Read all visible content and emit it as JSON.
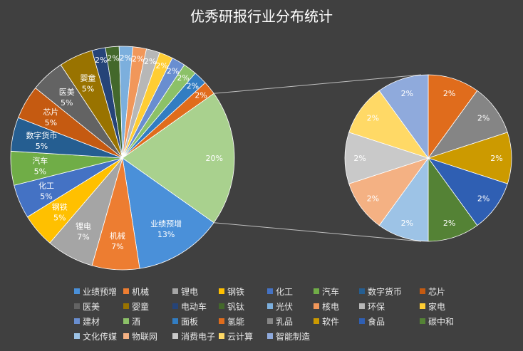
{
  "chart_data": {
    "type": "pie",
    "subtype": "pie-of-pie",
    "title": "优秀研报行业分布统计",
    "legend_position": "bottom",
    "slices": [
      {
        "name": "业绩预增",
        "value": 13,
        "label": "13%",
        "color": "#4a90d9"
      },
      {
        "name": "机械",
        "value": 7,
        "label": "7%",
        "color": "#ed7d31"
      },
      {
        "name": "锂电",
        "value": 7,
        "label": "7%",
        "color": "#a5a5a5"
      },
      {
        "name": "钢铁",
        "value": 5,
        "label": "5%",
        "color": "#ffc000"
      },
      {
        "name": "化工",
        "value": 5,
        "label": "5%",
        "color": "#4472c4"
      },
      {
        "name": "汽车",
        "value": 5,
        "label": "5%",
        "color": "#70ad47"
      },
      {
        "name": "数字货币",
        "value": 5,
        "label": "5%",
        "color": "#255e91"
      },
      {
        "name": "芯片",
        "value": 5,
        "label": "5%",
        "color": "#c55a11"
      },
      {
        "name": "医美",
        "value": 5,
        "label": "5%",
        "color": "#636363"
      },
      {
        "name": "婴童",
        "value": 5,
        "label": "5%",
        "color": "#997300"
      },
      {
        "name": "电动车",
        "value": 2,
        "label": "2%",
        "color": "#264478"
      },
      {
        "name": "钒钛",
        "value": 2,
        "label": "2%",
        "color": "#43682b"
      },
      {
        "name": "光伏",
        "value": 2,
        "label": "2%",
        "color": "#7cafdd"
      },
      {
        "name": "核电",
        "value": 2,
        "label": "2%",
        "color": "#f1975a"
      },
      {
        "name": "环保",
        "value": 2,
        "label": "2%",
        "color": "#b7b7b7"
      },
      {
        "name": "家电",
        "value": 2,
        "label": "2%",
        "color": "#ffcd33"
      },
      {
        "name": "建材",
        "value": 2,
        "label": "2%",
        "color": "#698ed0"
      },
      {
        "name": "酒",
        "value": 2,
        "label": "2%",
        "color": "#8cc168"
      },
      {
        "name": "面板",
        "value": 2,
        "label": "2%",
        "color": "#327dc2"
      },
      {
        "name": "氢能",
        "value": 2,
        "label": "2%",
        "color": "#e06c1c"
      },
      {
        "name": "乳品",
        "value": 2,
        "label": "2%",
        "color": "#858585"
      },
      {
        "name": "软件",
        "value": 2,
        "label": "2%",
        "color": "#cc9a00"
      },
      {
        "name": "食品",
        "value": 2,
        "label": "2%",
        "color": "#2f5fb3"
      },
      {
        "name": "碳中和",
        "value": 2,
        "label": "2%",
        "color": "#548235"
      },
      {
        "name": "文化传媒",
        "value": 2,
        "label": "2%",
        "color": "#9dc3e6"
      },
      {
        "name": "物联网",
        "value": 2,
        "label": "2%",
        "color": "#f4b183"
      },
      {
        "name": "消费电子",
        "value": 2,
        "label": "2%",
        "color": "#c9c9c9"
      },
      {
        "name": "云计算",
        "value": 2,
        "label": "2%",
        "color": "#ffd966"
      },
      {
        "name": "智能制造",
        "value": 2,
        "label": "2%",
        "color": "#8faadc"
      }
    ],
    "main_pie_count": 20,
    "secondary_pie_count": 10,
    "other_slice_label": "20%",
    "other_slice_color": "#a9d18e"
  }
}
